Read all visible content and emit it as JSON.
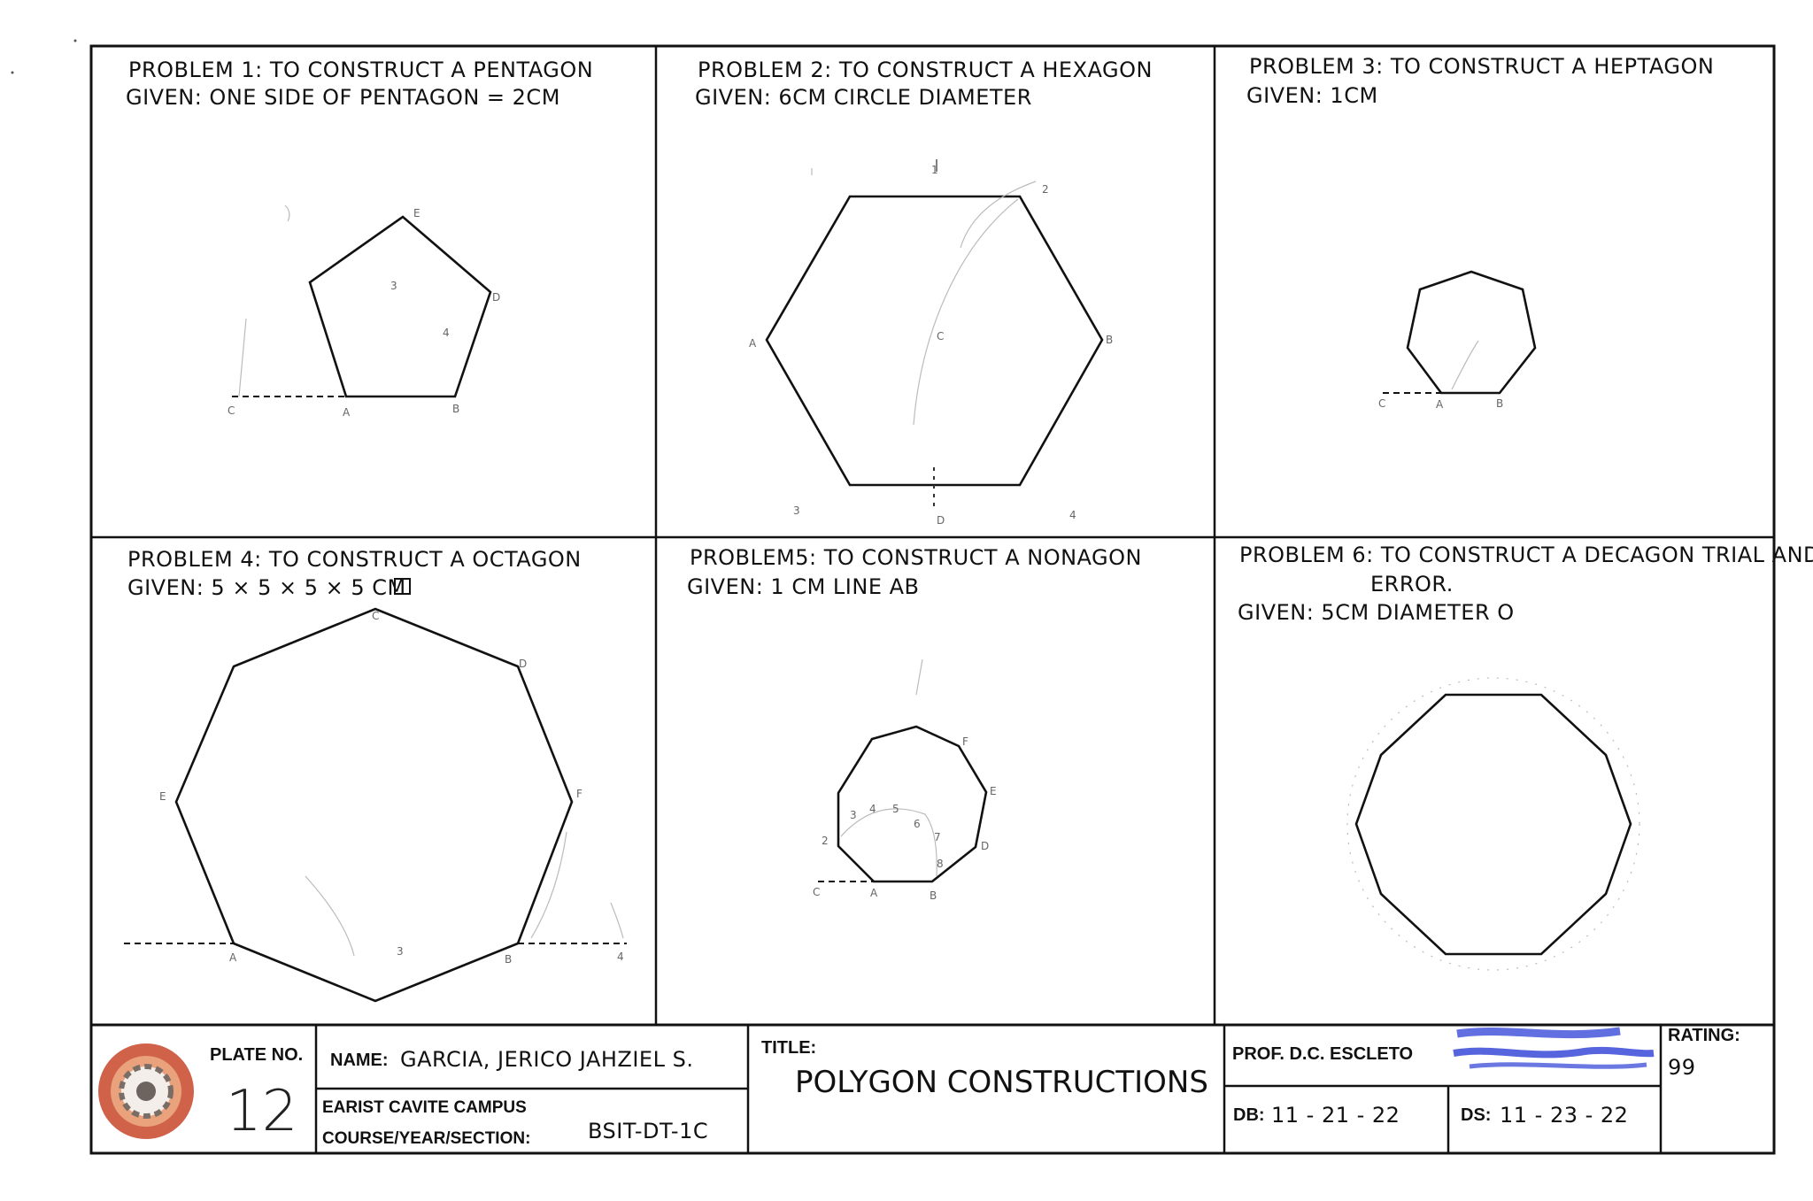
{
  "problems": [
    {
      "title": "PROBLEM 1: TO CONSTRUCT A PENTAGON",
      "given": "GIVEN: ONE SIDE OF PENTAGON = 2CM"
    },
    {
      "title": "PROBLEM 2: TO CONSTRUCT A HEXAGON",
      "given": "GIVEN: 6CM CIRCLE DIAMETER"
    },
    {
      "title": "PROBLEM 3: TO CONSTRUCT A HEPTAGON",
      "given": "GIVEN: 1CM"
    },
    {
      "title": "PROBLEM 4: TO CONSTRUCT A OCTAGON",
      "given": "GIVEN: 5 × 5 × 5 × 5 CM"
    },
    {
      "title": "PROBLEM5: TO CONSTRUCT A NONAGON",
      "given": "GIVEN: 1 CM LINE AB"
    },
    {
      "title": "PROBLEM 6: TO CONSTRUCT A DECAGON TRIAL AND",
      "title_line2": "ERROR.",
      "given": "GIVEN: 5CM DIAMETER O"
    }
  ],
  "construction_labels": {
    "pentagon": [
      "E",
      "D",
      "C",
      "A",
      "B",
      "3",
      "4"
    ],
    "hexagon": [
      "1",
      "A",
      "B",
      "D",
      "3",
      "4",
      "2",
      "C"
    ],
    "heptagon": [
      "C",
      "A",
      "B"
    ],
    "octagon": [
      "C",
      "D",
      "E",
      "F",
      "A",
      "B",
      "3",
      "4"
    ],
    "nonagon": [
      "C",
      "A",
      "B",
      "D",
      "E",
      "F",
      "2",
      "3",
      "4",
      "5",
      "6",
      "7",
      "8"
    ]
  },
  "title_block": {
    "plate_label": "PLATE NO.",
    "plate_number": "12",
    "name_label": "NAME:",
    "name_value": "GARCIA, JERICO JAHZIEL S.",
    "campus": "EARIST CAVITE CAMPUS",
    "course_label": "COURSE/YEAR/SECTION:",
    "course_value": "BSIT-DT-1C",
    "title_label": "TITLE:",
    "title_value": "POLYGON   CONSTRUCTIONS",
    "prof": "PROF. D.C. ESCLETO",
    "db_label": "DB:",
    "db_value": "11 - 21 - 22",
    "ds_label": "DS:",
    "ds_value": "11 - 23 - 22",
    "rating_label": "RATING:",
    "rating_value": "99"
  },
  "colors": {
    "ink": "#111111",
    "signature": "#2c3fd6",
    "logo": "#c8462a"
  }
}
